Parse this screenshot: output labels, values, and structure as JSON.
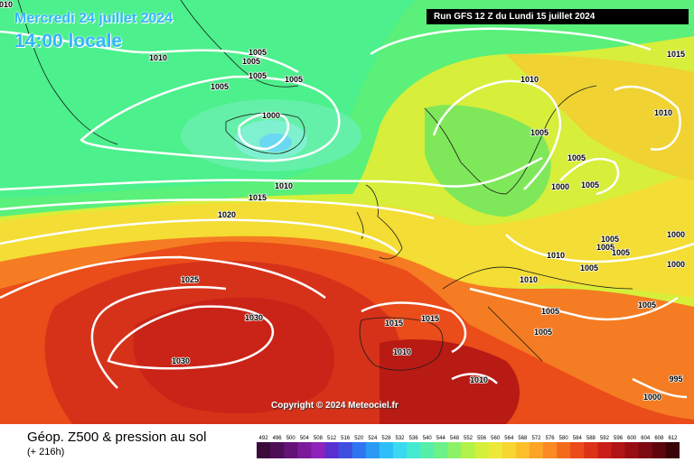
{
  "header": {
    "date": "Mercredi 24 juillet 2024",
    "time": "14:00 locale",
    "run": "Run GFS 12 Z du Lundi 15 juillet 2024"
  },
  "copyright": "Copyright © 2024 Meteociel.fr",
  "legend": {
    "title": "Géop. Z500 & pression au sol",
    "subtitle": "(+ 216h)",
    "ticks": [
      "492",
      "496",
      "500",
      "504",
      "508",
      "512",
      "516",
      "520",
      "524",
      "528",
      "532",
      "536",
      "540",
      "544",
      "548",
      "552",
      "556",
      "560",
      "564",
      "568",
      "572",
      "576",
      "580",
      "584",
      "588",
      "592",
      "596",
      "600",
      "604",
      "608",
      "612"
    ],
    "colors": [
      "#3b0b3b",
      "#4d0e55",
      "#631277",
      "#7a1a99",
      "#8f22bb",
      "#5a2fd0",
      "#3e4fe0",
      "#2f74f0",
      "#2a9af5",
      "#2fbff8",
      "#3ad9f0",
      "#45e9d0",
      "#55efaa",
      "#6cf088",
      "#8ef266",
      "#b2f24a",
      "#d4f03a",
      "#eee838",
      "#f8d632",
      "#fbbf2c",
      "#fba426",
      "#fa8a21",
      "#f46a1d",
      "#ea4c1a",
      "#dc3318",
      "#c91f16",
      "#b11414",
      "#970e12",
      "#7c0a10",
      "#5e060c",
      "#3a0408"
    ]
  },
  "isobars": [
    {
      "label": "1010",
      "pos": "left-top"
    },
    {
      "label": "1010",
      "pos": "north-atlantic"
    },
    {
      "label": "1005",
      "pos": "greenland-1"
    },
    {
      "label": "1005",
      "pos": "greenland-2"
    },
    {
      "label": "1005",
      "pos": "greenland-3"
    },
    {
      "label": "1005",
      "pos": "greenland-4"
    },
    {
      "label": "1005",
      "pos": "iceland-east"
    },
    {
      "label": "1000",
      "pos": "iceland-low"
    },
    {
      "label": "1010",
      "pos": "uk-north"
    },
    {
      "label": "1015",
      "pos": "uk-west"
    },
    {
      "label": "1020",
      "pos": "atlantic"
    },
    {
      "label": "1025",
      "pos": "azores-north"
    },
    {
      "label": "1030",
      "pos": "azores-1"
    },
    {
      "label": "1030",
      "pos": "azores-2"
    },
    {
      "label": "1015",
      "pos": "iberia-1"
    },
    {
      "label": "1015",
      "pos": "iberia-2"
    },
    {
      "label": "1010",
      "pos": "iberia-3"
    },
    {
      "label": "1010",
      "pos": "north-africa"
    },
    {
      "label": "1010",
      "pos": "scandinavia"
    },
    {
      "label": "1005",
      "pos": "sweden"
    },
    {
      "label": "1005",
      "pos": "finland"
    },
    {
      "label": "1000",
      "pos": "baltic-1"
    },
    {
      "label": "1005",
      "pos": "baltic-2"
    },
    {
      "label": "1010",
      "pos": "russia-ne"
    },
    {
      "label": "1015",
      "pos": "russia-far-ne"
    },
    {
      "label": "1005",
      "pos": "poland-1"
    },
    {
      "label": "1005",
      "pos": "poland-2"
    },
    {
      "label": "1005",
      "pos": "poland-3"
    },
    {
      "label": "1010",
      "pos": "central-europe"
    },
    {
      "label": "1010",
      "pos": "alps"
    },
    {
      "label": "1005",
      "pos": "balkans-1"
    },
    {
      "label": "1005",
      "pos": "balkans-2"
    },
    {
      "label": "1005",
      "pos": "russia-s"
    },
    {
      "label": "1000",
      "pos": "ukraine"
    },
    {
      "label": "1005",
      "pos": "black-sea"
    },
    {
      "label": "1000",
      "pos": "turkey"
    },
    {
      "label": "995",
      "pos": "east-edge"
    },
    {
      "label": "1000",
      "pos": "russia-east"
    }
  ]
}
